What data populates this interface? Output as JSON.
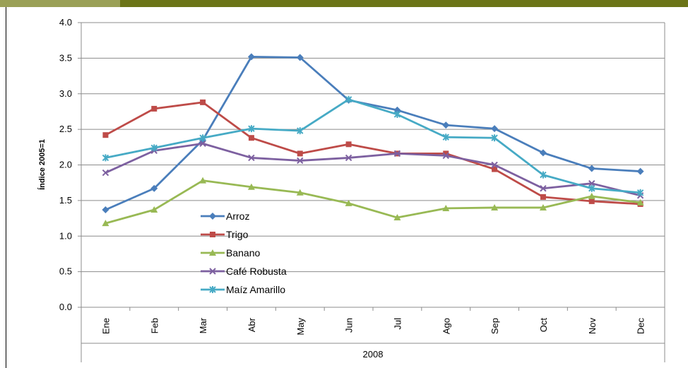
{
  "chart_data": {
    "type": "line",
    "ylabel": "Índice 2005=1",
    "xlabel": "2008",
    "ylim": [
      0,
      4
    ],
    "yticks": [
      "0.0",
      "0.5",
      "1.0",
      "1.5",
      "2.0",
      "2.5",
      "3.0",
      "3.5",
      "4.0"
    ],
    "categories": [
      "Ene",
      "Feb",
      "Mar",
      "Abr",
      "May",
      "Jun",
      "Jul",
      "Ago",
      "Sep",
      "Oct",
      "Nov",
      "Dec"
    ],
    "grid": true,
    "legend_position": "inside-left",
    "series": [
      {
        "name": "Arroz",
        "color": "#4a7ebb",
        "marker": "diamond",
        "values": [
          1.37,
          1.67,
          2.35,
          3.52,
          3.51,
          2.91,
          2.77,
          2.56,
          2.51,
          2.17,
          1.95,
          1.91
        ]
      },
      {
        "name": "Trigo",
        "color": "#be4b48",
        "marker": "square",
        "values": [
          2.42,
          2.79,
          2.88,
          2.38,
          2.16,
          2.29,
          2.16,
          2.16,
          1.94,
          1.55,
          1.49,
          1.45
        ]
      },
      {
        "name": "Banano",
        "color": "#98b954",
        "marker": "triangle",
        "values": [
          1.18,
          1.37,
          1.78,
          1.69,
          1.61,
          1.46,
          1.26,
          1.39,
          1.4,
          1.4,
          1.56,
          1.47
        ]
      },
      {
        "name": "Café Robusta",
        "color": "#7d60a0",
        "marker": "x",
        "values": [
          1.89,
          2.2,
          2.3,
          2.1,
          2.06,
          2.1,
          2.16,
          2.13,
          2.0,
          1.67,
          1.74,
          1.57
        ]
      },
      {
        "name": "Maíz Amarillo",
        "color": "#46aac5",
        "marker": "star",
        "values": [
          2.1,
          2.24,
          2.38,
          2.51,
          2.48,
          2.92,
          2.71,
          2.39,
          2.38,
          1.86,
          1.67,
          1.61
        ]
      }
    ]
  }
}
